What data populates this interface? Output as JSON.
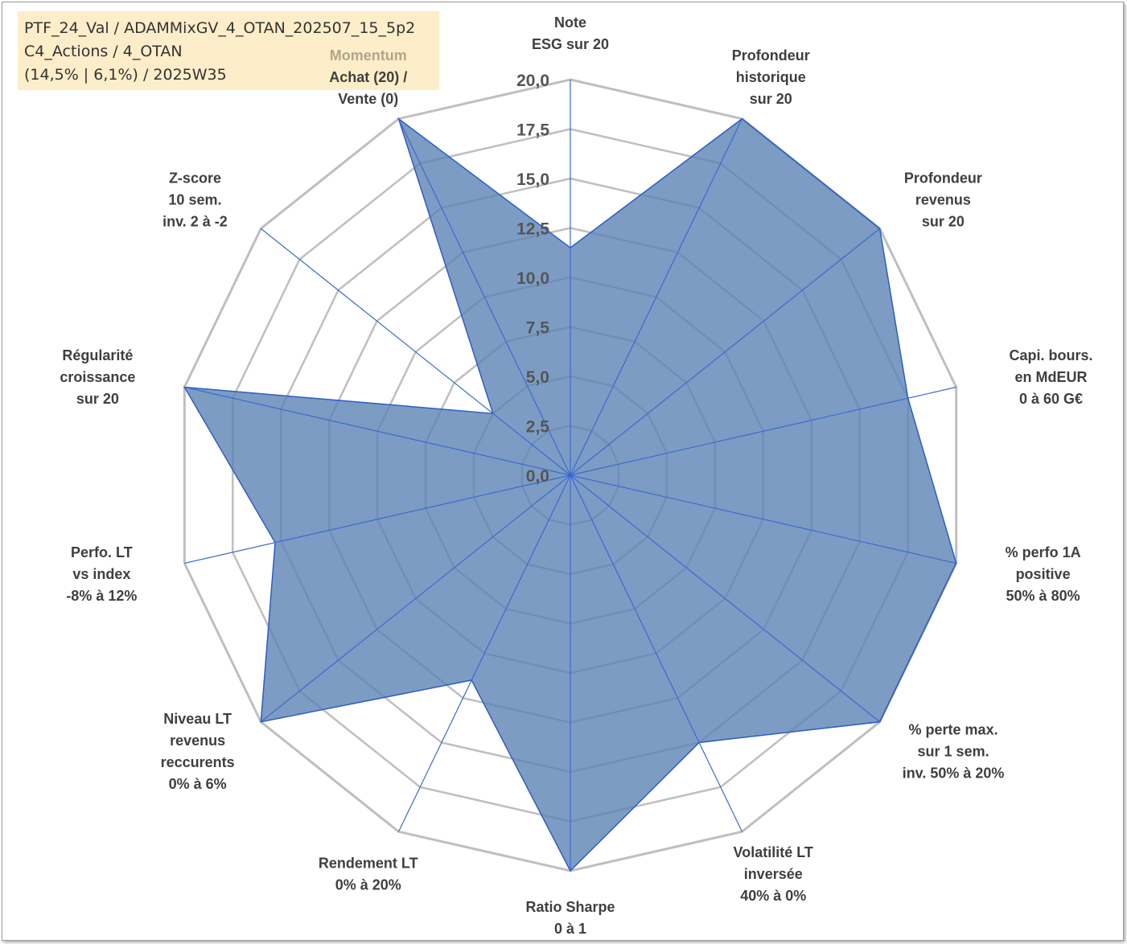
{
  "info_box": {
    "line1": "PTF_24_Val / ADAMMixGV_4_OTAN_202507_15_5p2",
    "line2": "C4_Actions / 4_OTAN",
    "line3": "(14,5% | 6,1%) / 2025W35"
  },
  "colors": {
    "fill": "#5b83b5",
    "stroke": "#2f5cc4",
    "grid": "#bfbfbf",
    "spoke": "#3c6ad0",
    "accent_label": "#b3a58a"
  },
  "chart_data": {
    "type": "radar",
    "r_min": 0,
    "r_max": 20,
    "r_ticks": [
      "0,0",
      "2,5",
      "5,0",
      "7,5",
      "10,0",
      "12,5",
      "15,0",
      "17,5",
      "20,0"
    ],
    "axes": [
      {
        "lines": [
          "Note",
          "ESG sur 20"
        ],
        "value": 11.5
      },
      {
        "lines": [
          "Profondeur",
          "historique",
          "sur 20"
        ],
        "value": 20
      },
      {
        "lines": [
          "Profondeur",
          "revenus",
          "sur 20"
        ],
        "value": 20
      },
      {
        "lines": [
          "Capi. bours.",
          "en MdEUR",
          "0 à 60 G€"
        ],
        "value": 17.5
      },
      {
        "lines": [
          "% perfo 1A",
          "positive",
          "50% à 80%"
        ],
        "value": 20
      },
      {
        "lines": [
          "% perte max.",
          "sur 1 sem.",
          "inv. 50% à 20%"
        ],
        "value": 20
      },
      {
        "lines": [
          "Volatilité LT",
          "inversée",
          "40% à 0%"
        ],
        "value": 15.0
      },
      {
        "lines": [
          "Ratio Sharpe",
          "0 à 1"
        ],
        "value": 20
      },
      {
        "lines": [
          "Rendement LT",
          "0% à 20%"
        ],
        "value": 11.5
      },
      {
        "lines": [
          "Niveau LT",
          "revenus",
          "reccurents",
          "0% à 6%"
        ],
        "value": 20
      },
      {
        "lines": [
          "Perfo. LT",
          "vs index",
          "-8% à 12%"
        ],
        "value": 15.3
      },
      {
        "lines": [
          "Régularité",
          "croissance",
          "sur 20"
        ],
        "value": 20
      },
      {
        "lines": [
          "Z-score",
          "10 sem.",
          "inv. 2 à -2"
        ],
        "value": 5.0
      },
      {
        "lines": [
          "Momentum",
          "Achat (20) /",
          "Vente (0)"
        ],
        "value": 20
      }
    ]
  }
}
